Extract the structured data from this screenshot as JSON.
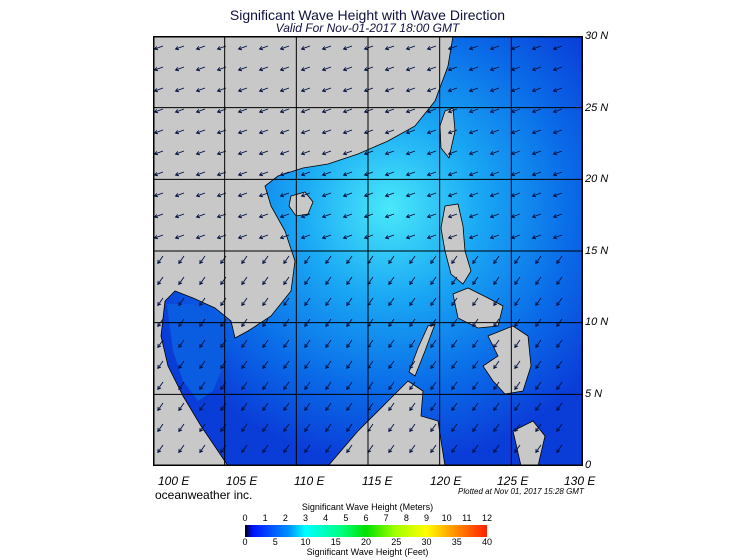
{
  "title": "Significant Wave Height with Wave Direction",
  "subtitle": "Valid For Nov-01-2017 18:00 GMT",
  "lat_labels": [
    "30 N",
    "25 N",
    "20 N",
    "15 N",
    "10 N",
    "5 N",
    "0"
  ],
  "lon_labels": [
    "100 E",
    "105 E",
    "110 E",
    "115 E",
    "120 E",
    "125 E",
    "130 E"
  ],
  "credit": "oceanweather inc.",
  "plotted": "Plotted at Nov 01, 2017 15:28 GMT",
  "colorbar": {
    "title_meters": "Significant Wave Height (Meters)",
    "title_feet": "Significant Wave Height (Feet)",
    "meters_ticks": [
      "0",
      "1",
      "2",
      "3",
      "4",
      "5",
      "6",
      "7",
      "8",
      "9",
      "10",
      "11",
      "12"
    ],
    "feet_ticks": [
      "0",
      "5",
      "10",
      "15",
      "20",
      "25",
      "30",
      "35",
      "40"
    ]
  },
  "colors": {
    "land": "#c8c8c8",
    "sea_deep": "#0a3cdc",
    "sea_mid": "#0a8cf0",
    "sea_high": "#30d8f8"
  }
}
